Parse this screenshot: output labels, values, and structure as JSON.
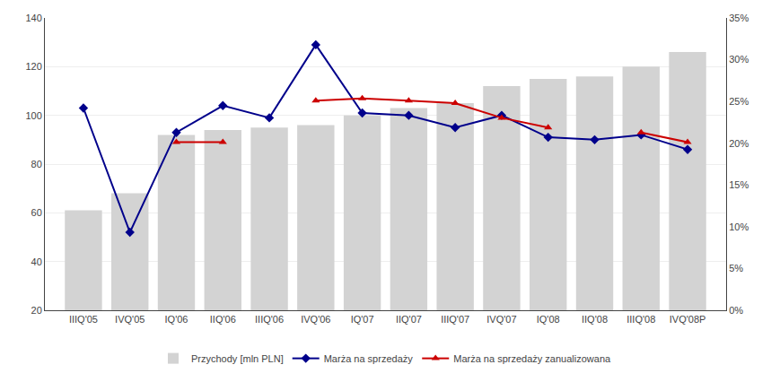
{
  "chart_data": {
    "type": "bar",
    "categories": [
      "IIIQ'05",
      "IVQ'05",
      "IQ'06",
      "IIQ'06",
      "IIIQ'06",
      "IVQ'06",
      "IQ'07",
      "IIQ'07",
      "IIIQ'07",
      "IVQ'07",
      "IQ'08",
      "IIQ'08",
      "IIIQ'08",
      "IVQ'08P"
    ],
    "series": [
      {
        "name": "Przychody [mln PLN]",
        "type": "bar",
        "color": "#d3d3d3",
        "values": [
          61,
          68,
          92,
          94,
          95,
          96,
          100,
          103,
          105,
          112,
          115,
          116,
          120,
          126
        ]
      },
      {
        "name": "Marża na sprzedaży",
        "type": "line",
        "color": "#00008B",
        "marker": "diamond",
        "values": [
          103,
          52,
          93,
          104,
          99,
          129,
          101,
          100,
          95,
          100,
          91,
          90,
          92,
          86
        ]
      },
      {
        "name": "Marża na sprzedaży zanualizowana",
        "type": "line",
        "color": "#CC0000",
        "marker": "triangle-up",
        "values": [
          null,
          null,
          89,
          89,
          null,
          106,
          107,
          106,
          105,
          99,
          95,
          null,
          93,
          89
        ]
      }
    ],
    "ylim": [
      20,
      140
    ],
    "yticks": [
      20,
      40,
      60,
      80,
      100,
      120,
      140
    ],
    "y2lim": [
      0,
      35
    ],
    "y2ticks": [
      {
        "value": 0,
        "label": "0%"
      },
      {
        "value": 5,
        "label": "5%"
      },
      {
        "value": 10,
        "label": "10%"
      },
      {
        "value": 15,
        "label": "15%"
      },
      {
        "value": 20,
        "label": "20%"
      },
      {
        "value": 25,
        "label": "25%"
      },
      {
        "value": 30,
        "label": "30%"
      },
      {
        "value": 35,
        "label": "35%"
      }
    ],
    "grid": true,
    "legend": "bottom"
  }
}
